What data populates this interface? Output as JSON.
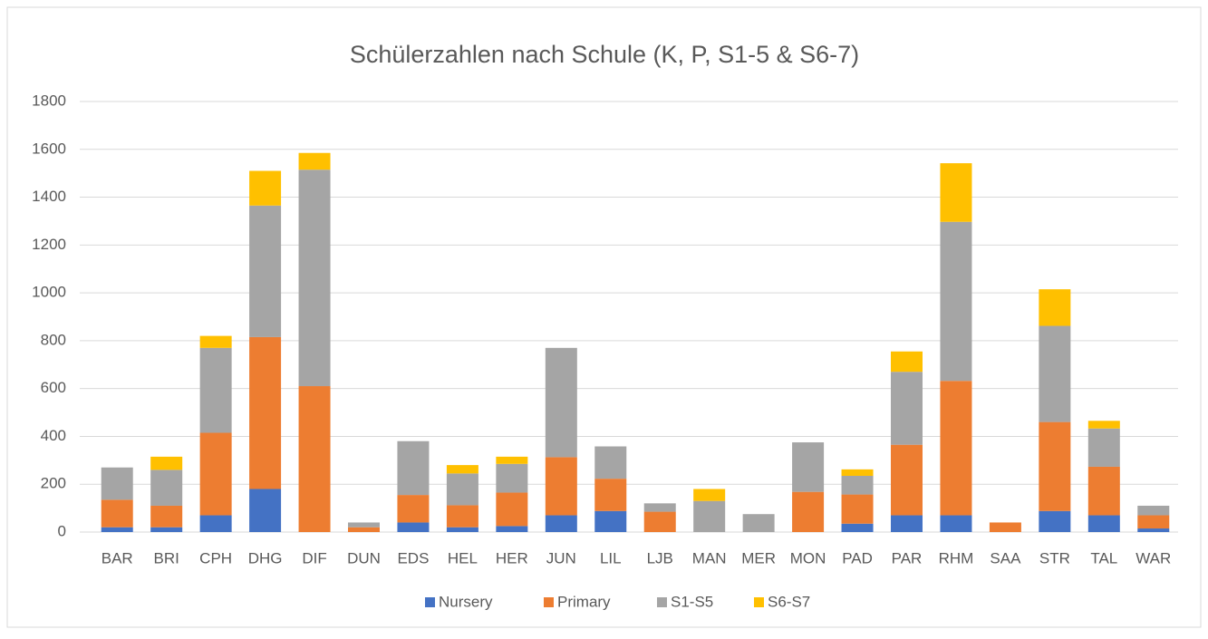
{
  "chart_data": {
    "type": "stacked_bar",
    "title": "Schülerzahlen nach Schule (K, P, S1-5 & S6-7)",
    "categories": [
      "BAR",
      "BRI",
      "CPH",
      "DHG",
      "DIF",
      "DUN",
      "EDS",
      "HEL",
      "HER",
      "JUN",
      "LIL",
      "LJB",
      "MAN",
      "MER",
      "MON",
      "PAD",
      "PAR",
      "RHM",
      "SAA",
      "STR",
      "TAL",
      "WAR"
    ],
    "series": [
      {
        "name": "Nursery",
        "color": "#4472c4",
        "values": [
          20,
          20,
          70,
          180,
          0,
          0,
          40,
          20,
          25,
          70,
          88,
          0,
          0,
          0,
          0,
          35,
          70,
          70,
          0,
          88,
          70,
          15
        ]
      },
      {
        "name": "Primary",
        "color": "#ed7d31",
        "values": [
          115,
          90,
          345,
          635,
          610,
          20,
          115,
          92,
          140,
          243,
          135,
          85,
          0,
          0,
          168,
          122,
          295,
          562,
          40,
          372,
          203,
          55
        ]
      },
      {
        "name": "S1-S5",
        "color": "#a5a5a5",
        "values": [
          135,
          150,
          355,
          550,
          905,
          20,
          225,
          133,
          120,
          457,
          135,
          35,
          130,
          75,
          207,
          78,
          305,
          665,
          0,
          402,
          160,
          40
        ]
      },
      {
        "name": "S6-S7",
        "color": "#ffc000",
        "values": [
          0,
          55,
          50,
          145,
          70,
          0,
          0,
          35,
          30,
          0,
          0,
          0,
          50,
          0,
          0,
          27,
          85,
          245,
          0,
          153,
          32,
          0
        ]
      }
    ],
    "ylim": [
      0,
      1800
    ],
    "yticks": [
      0,
      200,
      400,
      600,
      800,
      1000,
      1200,
      1400,
      1600,
      1800
    ],
    "grid": true,
    "legend": "bottom"
  }
}
